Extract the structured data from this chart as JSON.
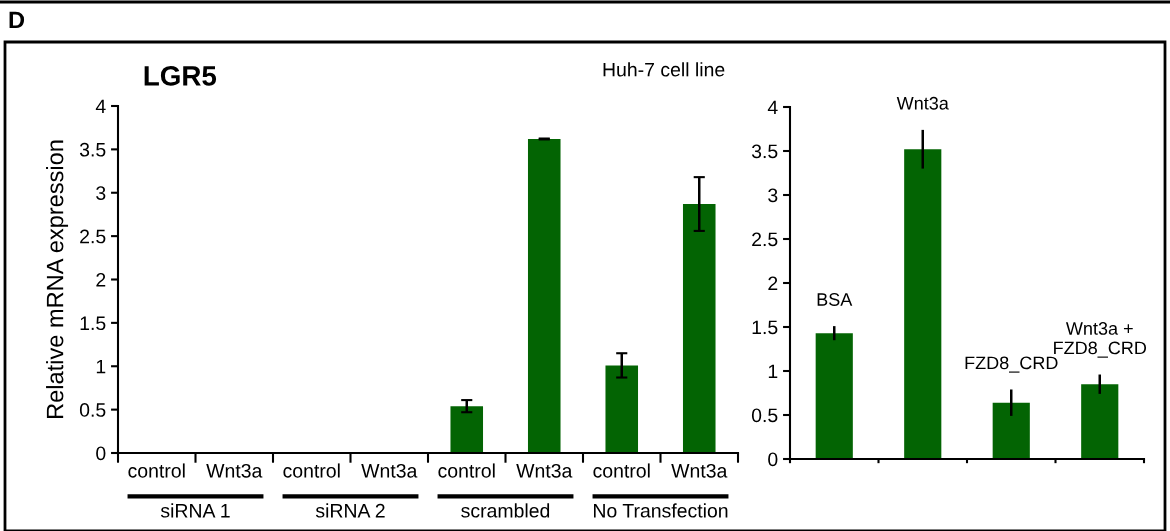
{
  "chart_data": [
    {
      "type": "bar",
      "title": "LGR5",
      "subtitle": "Huh-7 cell line",
      "ylabel": "Relative mRNA expression",
      "categories": [
        "control",
        "Wnt3a",
        "control",
        "Wnt3a",
        "control",
        "Wnt3a",
        "control",
        "Wnt3a"
      ],
      "values": [
        0.01,
        0.01,
        0.01,
        0.01,
        0.54,
        3.62,
        1.01,
        2.87
      ],
      "errors": [
        null,
        null,
        null,
        null,
        0.07,
        0.005,
        0.14,
        0.31
      ],
      "color": "#036403",
      "ylim": [
        0,
        4
      ],
      "yticks": [
        0,
        0.5,
        1,
        1.5,
        2,
        2.5,
        3,
        3.5,
        4
      ],
      "annotations": [
        "D",
        "siRNA 1",
        "siRNA 2",
        "scrambled",
        "No Transfection"
      ]
    },
    {
      "type": "bar",
      "categories": [
        "BSA",
        "Wnt3a",
        "FZD8_CRD",
        "Wnt3a +\nFZD8_CRD"
      ],
      "values": [
        1.43,
        3.52,
        0.64,
        0.85
      ],
      "errors": [
        0.08,
        0.22,
        0.15,
        0.11
      ],
      "color": "#036403",
      "ylim": [
        0,
        4
      ],
      "yticks": [
        0,
        0.5,
        1,
        1.5,
        2,
        2.5,
        3,
        3.5,
        4
      ],
      "tick_labels": "y"
    }
  ]
}
